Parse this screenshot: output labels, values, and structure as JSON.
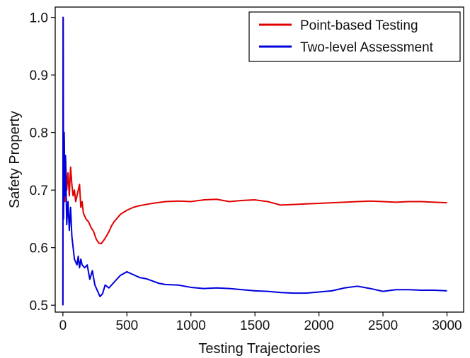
{
  "chart_data": {
    "type": "line",
    "title": "",
    "xlabel": "Testing Trajectories",
    "ylabel": "Safety Property",
    "xlim": [
      -60,
      3130
    ],
    "ylim": [
      0.488,
      1.018
    ],
    "x_ticks": [
      0,
      500,
      1000,
      1500,
      2000,
      2500,
      3000
    ],
    "y_ticks": [
      0.5,
      0.6,
      0.7,
      0.8,
      0.9,
      1.0
    ],
    "x_tick_labels": [
      "0",
      "500",
      "1000",
      "1500",
      "2000",
      "2500",
      "3000"
    ],
    "y_tick_labels": [
      "0.5",
      "0.6",
      "0.7",
      "0.8",
      "0.9",
      "1.0"
    ],
    "grid": false,
    "legend_position": "top-right",
    "series": [
      {
        "name": "Point-based Testing",
        "color": "#e00000",
        "x": [
          0,
          2,
          5,
          10,
          15,
          20,
          30,
          40,
          50,
          60,
          70,
          80,
          90,
          100,
          110,
          120,
          130,
          140,
          150,
          160,
          180,
          200,
          220,
          240,
          260,
          280,
          300,
          320,
          340,
          360,
          380,
          400,
          450,
          500,
          550,
          600,
          700,
          800,
          900,
          1000,
          1100,
          1200,
          1300,
          1400,
          1500,
          1600,
          1700,
          1800,
          1900,
          2000,
          2100,
          2200,
          2300,
          2400,
          2500,
          2600,
          2700,
          2800,
          2900,
          3000
        ],
        "y": [
          0.5,
          1.0,
          0.72,
          0.79,
          0.68,
          0.76,
          0.7,
          0.73,
          0.69,
          0.74,
          0.71,
          0.69,
          0.7,
          0.68,
          0.69,
          0.7,
          0.71,
          0.67,
          0.68,
          0.66,
          0.65,
          0.645,
          0.635,
          0.628,
          0.615,
          0.608,
          0.607,
          0.613,
          0.62,
          0.628,
          0.638,
          0.645,
          0.658,
          0.665,
          0.67,
          0.673,
          0.677,
          0.68,
          0.681,
          0.68,
          0.683,
          0.684,
          0.68,
          0.682,
          0.683,
          0.68,
          0.674,
          0.675,
          0.676,
          0.677,
          0.678,
          0.679,
          0.68,
          0.681,
          0.68,
          0.679,
          0.68,
          0.68,
          0.679,
          0.678
        ]
      },
      {
        "name": "Two-level Assessment",
        "color": "#0000dd",
        "x": [
          0,
          2,
          5,
          10,
          15,
          20,
          30,
          40,
          50,
          60,
          70,
          80,
          90,
          100,
          110,
          120,
          130,
          140,
          150,
          170,
          190,
          210,
          230,
          250,
          270,
          290,
          310,
          330,
          360,
          400,
          450,
          500,
          550,
          600,
          650,
          700,
          750,
          800,
          900,
          1000,
          1100,
          1200,
          1300,
          1400,
          1500,
          1600,
          1700,
          1800,
          1900,
          2000,
          2100,
          2200,
          2300,
          2400,
          2500,
          2600,
          2700,
          2800,
          2900,
          3000
        ],
        "y": [
          0.5,
          1.0,
          0.65,
          0.8,
          0.69,
          0.76,
          0.64,
          0.68,
          0.63,
          0.67,
          0.62,
          0.6,
          0.58,
          0.575,
          0.57,
          0.585,
          0.565,
          0.58,
          0.57,
          0.565,
          0.57,
          0.545,
          0.56,
          0.535,
          0.525,
          0.515,
          0.52,
          0.535,
          0.53,
          0.54,
          0.552,
          0.558,
          0.553,
          0.548,
          0.546,
          0.542,
          0.538,
          0.536,
          0.535,
          0.531,
          0.529,
          0.53,
          0.529,
          0.527,
          0.525,
          0.524,
          0.522,
          0.521,
          0.521,
          0.523,
          0.525,
          0.53,
          0.533,
          0.529,
          0.524,
          0.527,
          0.527,
          0.526,
          0.526,
          0.525
        ]
      }
    ]
  }
}
